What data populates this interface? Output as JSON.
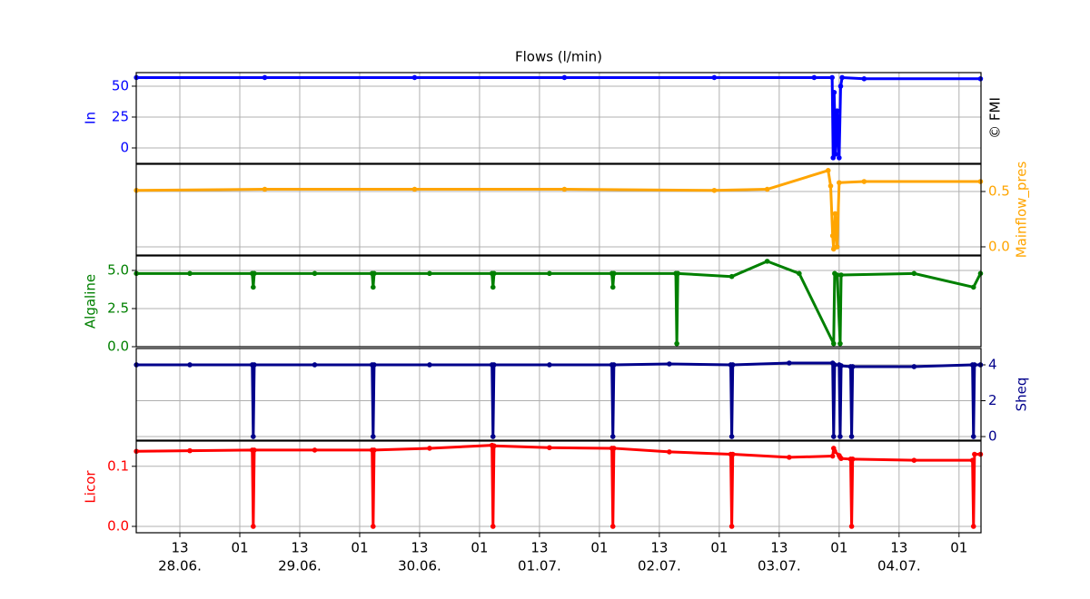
{
  "chart_data": [
    {
      "type": "line",
      "title": "Flows (l/min)",
      "annotation": "© FMI",
      "ylabel": "In",
      "axis_side": "left",
      "color": "#0000ff",
      "x": [
        4.3,
        30,
        60,
        90,
        120,
        140,
        143.6,
        143.8,
        144.0,
        144.3,
        144.6,
        145.0,
        145.3,
        145.6,
        150,
        173.3
      ],
      "values": [
        57,
        57,
        57,
        57,
        57,
        57,
        57,
        -8,
        45,
        -5,
        30,
        -8,
        50,
        57,
        56,
        56
      ],
      "xlim": [
        4.27,
        173.4
      ],
      "xticks": [
        13,
        25,
        37,
        49,
        61,
        73,
        85,
        97,
        109,
        121,
        133,
        145,
        157,
        169
      ],
      "ylim": [
        -12.5,
        61
      ],
      "yticks": [
        0,
        25,
        50
      ],
      "grid": true
    },
    {
      "type": "line",
      "ylabel": "Mainflow_pres",
      "axis_side": "right",
      "color": "#ffa500",
      "x": [
        4.3,
        30,
        60,
        90,
        120,
        130.6,
        142.8,
        143.3,
        143.7,
        143.9,
        144.2,
        144.6,
        145.0,
        150,
        173.3
      ],
      "values": [
        0.51,
        0.52,
        0.52,
        0.52,
        0.51,
        0.52,
        0.69,
        0.55,
        0.1,
        -0.02,
        0.3,
        0.0,
        0.58,
        0.59,
        0.59
      ],
      "xlim": [
        4.27,
        173.4
      ],
      "xticks": [
        13,
        25,
        37,
        49,
        61,
        73,
        85,
        97,
        109,
        121,
        133,
        145,
        157,
        169
      ],
      "ylim": [
        -0.074,
        0.746
      ],
      "yticks": [
        {
          "value": 0,
          "label": "0.0"
        },
        0.5
      ],
      "grid": true
    },
    {
      "type": "line",
      "ylabel": "Algaline",
      "axis_side": "left",
      "color": "#008000",
      "x": [
        4.3,
        15,
        27.5,
        27.7,
        27.9,
        40,
        51.5,
        51.7,
        51.9,
        63,
        75.5,
        75.7,
        75.9,
        87,
        99.5,
        99.7,
        99.9,
        112.3,
        112.5,
        112.7,
        123.5,
        130.6,
        137,
        143.9,
        144.1,
        144.6,
        145.2,
        145.4,
        160,
        171.9,
        173.3
      ],
      "values": [
        4.8,
        4.8,
        4.8,
        3.9,
        4.8,
        4.8,
        4.8,
        3.9,
        4.8,
        4.8,
        4.8,
        3.9,
        4.8,
        4.8,
        4.8,
        3.9,
        4.8,
        4.8,
        0.2,
        4.8,
        4.6,
        5.6,
        4.8,
        0.2,
        4.8,
        4.7,
        0.2,
        4.7,
        4.8,
        3.9,
        4.8
      ],
      "xlim": [
        4.27,
        173.4
      ],
      "xticks": [
        13,
        25,
        37,
        49,
        61,
        73,
        85,
        97,
        109,
        121,
        133,
        145,
        157,
        169
      ],
      "ylim": [
        0,
        5.95
      ],
      "yticks": [
        {
          "value": 0,
          "label": "0.0"
        },
        2.5,
        {
          "value": 5,
          "label": "5.0"
        }
      ],
      "grid": true
    },
    {
      "type": "line",
      "ylabel": "Sheq",
      "axis_side": "right",
      "color": "#00008b",
      "x": [
        4.3,
        15,
        27.5,
        27.7,
        27.9,
        40,
        51.5,
        51.7,
        51.9,
        63,
        75.5,
        75.7,
        75.9,
        87,
        99.5,
        99.7,
        99.9,
        111,
        123.3,
        123.5,
        123.7,
        135,
        143.7,
        143.9,
        144.1,
        145,
        145.2,
        145.4,
        147.3,
        147.5,
        147.7,
        160,
        171.7,
        171.9,
        172.1,
        173.3
      ],
      "values": [
        4.0,
        4.0,
        4.0,
        0,
        4.0,
        4.0,
        4.0,
        0,
        4.0,
        4.0,
        4.0,
        0,
        4.0,
        4.0,
        4.0,
        0,
        4.0,
        4.05,
        4.0,
        0,
        4.0,
        4.1,
        4.1,
        0,
        4.0,
        4.0,
        0,
        3.95,
        3.9,
        0,
        3.9,
        3.9,
        4.0,
        0,
        4.0,
        4.0
      ],
      "xlim": [
        4.27,
        173.4
      ],
      "xticks": [
        13,
        25,
        37,
        49,
        61,
        73,
        85,
        97,
        109,
        121,
        133,
        145,
        157,
        169
      ],
      "ylim": [
        -0.2,
        4.91
      ],
      "yticks": [
        0,
        2,
        4
      ],
      "grid": true
    },
    {
      "type": "line",
      "ylabel": "Licor",
      "axis_side": "left",
      "color": "#ff0000",
      "x": [
        4.3,
        15,
        27.5,
        27.7,
        27.9,
        40,
        51.5,
        51.7,
        51.9,
        63,
        75.5,
        75.7,
        75.9,
        87,
        99.5,
        99.7,
        99.9,
        111,
        123.3,
        123.5,
        123.7,
        135,
        143.7,
        143.9,
        144.1,
        145,
        145.2,
        145.4,
        147.3,
        147.5,
        147.7,
        160,
        171.7,
        171.9,
        172.1,
        173.3
      ],
      "values": [
        0.125,
        0.126,
        0.127,
        0,
        0.127,
        0.127,
        0.127,
        0,
        0.127,
        0.13,
        0.135,
        0,
        0.134,
        0.131,
        0.13,
        0,
        0.13,
        0.124,
        0.12,
        0,
        0.12,
        0.115,
        0.117,
        0.13,
        0.125,
        0.118,
        0.115,
        0.113,
        0.112,
        0,
        0.112,
        0.11,
        0.11,
        0,
        0.12,
        0.12
      ],
      "xlim": [
        4.27,
        173.4
      ],
      "xticks": [
        {
          "value": 13,
          "label": "13"
        },
        {
          "value": 25,
          "label": "01"
        },
        {
          "value": 37,
          "label": "13"
        },
        {
          "value": 49,
          "label": "01"
        },
        {
          "value": 61,
          "label": "13"
        },
        {
          "value": 73,
          "label": "01"
        },
        {
          "value": 85,
          "label": "13"
        },
        {
          "value": 97,
          "label": "01"
        },
        {
          "value": 109,
          "label": "13"
        },
        {
          "value": 121,
          "label": "01"
        },
        {
          "value": 133,
          "label": "13"
        },
        {
          "value": 145,
          "label": "01"
        },
        {
          "value": 157,
          "label": "13"
        },
        {
          "value": 169,
          "label": "01"
        }
      ],
      "xdate_labels": [
        {
          "value": 13,
          "label": "28.06."
        },
        {
          "value": 37,
          "label": "29.06."
        },
        {
          "value": 61,
          "label": "30.06."
        },
        {
          "value": 85,
          "label": "01.07."
        },
        {
          "value": 109,
          "label": "02.07."
        },
        {
          "value": 133,
          "label": "03.07."
        },
        {
          "value": 157,
          "label": "04.07."
        }
      ],
      "ylim": [
        -0.0106,
        0.142
      ],
      "yticks": [
        {
          "value": 0,
          "label": "0.0"
        },
        0.1
      ],
      "grid": true
    }
  ]
}
